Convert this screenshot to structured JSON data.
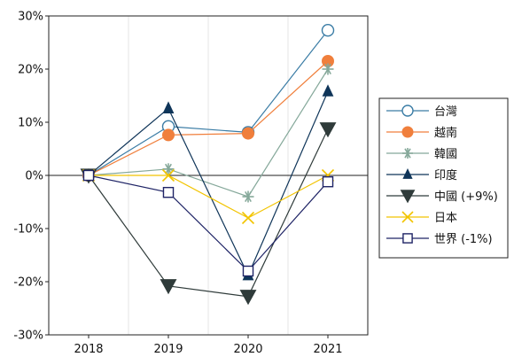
{
  "chart_data": {
    "type": "line",
    "title": "",
    "xlabel": "",
    "ylabel": "",
    "x": [
      "2018",
      "2019",
      "2020",
      "2021"
    ],
    "ylim": [
      -30,
      30
    ],
    "y_ticks": [
      -30,
      -20,
      -10,
      0,
      10,
      20,
      30
    ],
    "y_tick_labels": [
      "-30%",
      "-20%",
      "-10%",
      "0%",
      "10%",
      "20%",
      "30%"
    ],
    "grid": "vertical",
    "legend_position": "right",
    "series": [
      {
        "name": "台灣",
        "color": "#3a7ca5",
        "marker": "open-circle",
        "values": [
          0,
          9.2,
          8.1,
          27.3
        ]
      },
      {
        "name": "越南",
        "color": "#f07f3c",
        "marker": "filled-circle",
        "values": [
          0,
          7.6,
          7.9,
          21.5
        ]
      },
      {
        "name": "韓國",
        "color": "#85a89a",
        "marker": "asterisk",
        "values": [
          0,
          1.2,
          -4.0,
          20.0
        ]
      },
      {
        "name": "印度",
        "color": "#0f3559",
        "marker": "triangle-up",
        "values": [
          0,
          12.6,
          -18.8,
          15.8
        ]
      },
      {
        "name": "中國 (+9%)",
        "color": "#2f3b3a",
        "marker": "triangle-down",
        "values": [
          0,
          -20.8,
          -22.8,
          8.7
        ]
      },
      {
        "name": "日本",
        "color": "#f2c400",
        "marker": "x",
        "values": [
          0,
          0,
          -8.0,
          0
        ]
      },
      {
        "name": "世界 (-1%)",
        "color": "#1f2466",
        "marker": "open-square",
        "values": [
          0,
          -3.2,
          -18.0,
          -1.2
        ]
      }
    ]
  }
}
